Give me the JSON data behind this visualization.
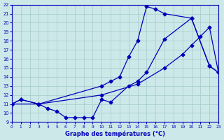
{
  "title": "Graphe des températures (°C)",
  "bg_color": "#cce8e8",
  "grid_color": "#aacfcf",
  "line_color": "#0000bb",
  "xlim": [
    0,
    23
  ],
  "ylim": [
    9,
    22
  ],
  "xticks": [
    0,
    1,
    2,
    3,
    4,
    5,
    6,
    7,
    8,
    9,
    10,
    11,
    12,
    13,
    14,
    15,
    16,
    17,
    18,
    19,
    20,
    21,
    22,
    23
  ],
  "yticks": [
    9,
    10,
    11,
    12,
    13,
    14,
    15,
    16,
    17,
    18,
    19,
    20,
    21,
    22
  ],
  "curve_a_x": [
    0,
    1,
    3,
    10,
    11,
    12,
    13,
    14,
    15,
    16,
    17,
    20,
    22,
    23
  ],
  "curve_a_y": [
    11,
    11.5,
    11,
    13,
    13.5,
    14,
    16.2,
    18,
    21.8,
    21.5,
    21,
    20.5,
    15.2,
    14.5
  ],
  "curve_b_x": [
    0,
    3,
    10,
    14,
    17,
    19,
    20,
    21,
    22,
    23
  ],
  "curve_b_y": [
    11,
    11,
    12,
    13.2,
    15,
    16.5,
    17.5,
    18.5,
    19.5,
    14.5
  ],
  "curve_c_x": [
    0,
    1,
    3,
    4,
    5,
    6,
    7,
    8,
    9,
    10,
    11,
    13,
    14,
    15,
    17,
    20,
    22,
    23
  ],
  "curve_c_y": [
    11,
    11.5,
    11,
    10.5,
    10.2,
    9.5,
    9.5,
    9.5,
    9.5,
    11.5,
    11.2,
    13,
    13.5,
    14.5,
    18.2,
    20.5,
    15.2,
    14.5
  ]
}
